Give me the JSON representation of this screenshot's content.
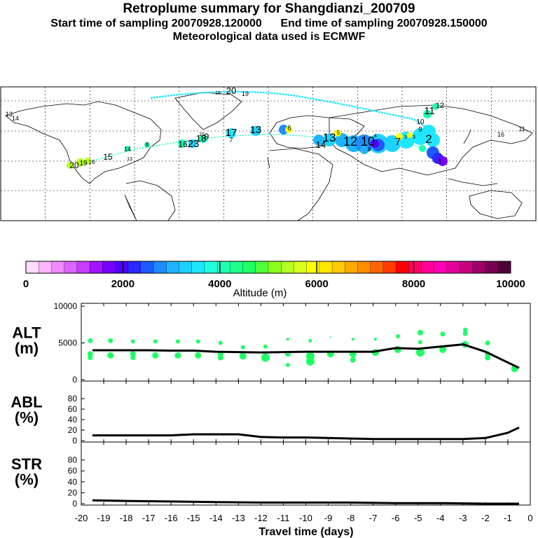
{
  "header": {
    "title": "Retroplume summary for Shangdianzi_200709",
    "sampling_line": "Start time of sampling 20070928.120000      End time of sampling 20070928.150000",
    "met_line": "Meteorological data used is ECMWF"
  },
  "colorbar": {
    "tick_labels": [
      "0",
      "2000",
      "4000",
      "6000",
      "8000",
      "10000"
    ],
    "label": "Altitude (m)",
    "colors": [
      "#ffdcff",
      "#ffb4ff",
      "#f08cff",
      "#dc64ff",
      "#c83cff",
      "#a014ff",
      "#7800ff",
      "#5000ff",
      "#2828ff",
      "#1e5aff",
      "#1e8cff",
      "#1eb4ff",
      "#1ed2ff",
      "#1ee6ff",
      "#1effdc",
      "#1effb4",
      "#1eff8c",
      "#1eff64",
      "#50ff3c",
      "#8cff1e",
      "#b4ff1e",
      "#dcff1e",
      "#ffff00",
      "#ffe600",
      "#ffc800",
      "#ffaa00",
      "#ff8c00",
      "#ff6400",
      "#ff3c00",
      "#ff0000",
      "#ff0064",
      "#ff0096",
      "#ff00b4",
      "#e6009b",
      "#c80082",
      "#a00069",
      "#780050",
      "#500037"
    ]
  },
  "map": {
    "labels": [
      {
        "t": "13",
        "c": "#1effb4"
      },
      {
        "t": "14",
        "c": "#1effb4"
      },
      {
        "t": "20",
        "c": "#1effb4"
      },
      {
        "t": "19",
        "c": "#1effb4"
      },
      {
        "t": "18",
        "c": "#1effb4"
      },
      {
        "t": "17",
        "c": "#1ed2ff"
      },
      {
        "t": "7",
        "c": "#1ed2ff"
      },
      {
        "t": "13",
        "c": "#1ed2ff"
      },
      {
        "t": "6",
        "c": "#ffff00"
      },
      {
        "t": "5",
        "c": "#ffff00"
      },
      {
        "t": "14",
        "c": "#1eb4ff"
      },
      {
        "t": "13",
        "c": "#1eb4ff"
      },
      {
        "t": "12",
        "c": "#1e8cff"
      },
      {
        "t": "10",
        "c": "#1e5aff"
      },
      {
        "t": "8",
        "c": "#1e8cff"
      },
      {
        "t": "4",
        "c": "#ffff00"
      },
      {
        "t": "7",
        "c": "#1ed2ff"
      },
      {
        "t": "3",
        "c": "#ffff00"
      },
      {
        "t": "3",
        "c": "#ffff00"
      },
      {
        "t": "2",
        "c": "#1e8cff"
      },
      {
        "t": "1",
        "c": "#5000ff"
      },
      {
        "t": "12",
        "c": "#1effb4"
      },
      {
        "t": "11",
        "c": "#1effb4"
      },
      {
        "t": "10",
        "c": "#1effb4"
      },
      {
        "t": "9",
        "c": "#1ed2ff"
      },
      {
        "t": "20",
        "c": "#b4ff1e"
      },
      {
        "t": "19",
        "c": "#b4ff1e"
      },
      {
        "t": "16",
        "c": "#b4ff1e"
      },
      {
        "t": "15",
        "c": "#1effb4"
      },
      {
        "t": "14",
        "c": "#1effb4"
      },
      {
        "t": "13",
        "c": "#1effb4"
      },
      {
        "t": "18",
        "c": "#1effb4"
      },
      {
        "t": "16",
        "c": "#1effb4"
      },
      {
        "t": "23",
        "c": "#1effb4"
      },
      {
        "t": "9",
        "c": "#1effb4"
      },
      {
        "t": "8",
        "c": "#1effb4"
      },
      {
        "t": "15",
        "c": "#1effb4"
      },
      {
        "t": "16",
        "c": "#1effb4"
      },
      {
        "t": "11",
        "c": "#1effb4"
      }
    ]
  },
  "chart_data": [
    {
      "type": "line",
      "name": "ALT",
      "ylabel": "ALT\n(m)",
      "ylim": [
        0,
        10000
      ],
      "yticks": [
        "0",
        "5000",
        "10000"
      ],
      "x": [
        -19.5,
        -19,
        -18,
        -17,
        -16,
        -15,
        -14,
        -13,
        -12,
        -11,
        -10,
        -9,
        -8,
        -7,
        -6,
        -5,
        -4,
        -3,
        -2,
        -0.5
      ],
      "values": [
        4000,
        4000,
        4000,
        4000,
        3950,
        3950,
        3800,
        3750,
        3700,
        3750,
        3800,
        3800,
        3800,
        3800,
        4300,
        4200,
        4500,
        4800,
        3800,
        1600
      ],
      "dots": [
        {
          "x": -19.6,
          "y": 5300,
          "r": 3.5
        },
        {
          "x": -19.6,
          "y": 3500,
          "r": 4
        },
        {
          "x": -19.6,
          "y": 3000,
          "r": 3.5
        },
        {
          "x": -18.7,
          "y": 5300,
          "r": 3.5
        },
        {
          "x": -18.7,
          "y": 3300,
          "r": 4.5
        },
        {
          "x": -17.7,
          "y": 5200,
          "r": 3
        },
        {
          "x": -17.7,
          "y": 3500,
          "r": 4
        },
        {
          "x": -17.7,
          "y": 3000,
          "r": 3.5
        },
        {
          "x": -16.7,
          "y": 5200,
          "r": 3
        },
        {
          "x": -16.7,
          "y": 3300,
          "r": 4.5
        },
        {
          "x": -15.7,
          "y": 5200,
          "r": 3
        },
        {
          "x": -15.7,
          "y": 3300,
          "r": 4.5
        },
        {
          "x": -14.8,
          "y": 5200,
          "r": 3
        },
        {
          "x": -14.8,
          "y": 3300,
          "r": 4.5
        },
        {
          "x": -13.8,
          "y": 5000,
          "r": 3
        },
        {
          "x": -13.8,
          "y": 3500,
          "r": 4
        },
        {
          "x": -13.8,
          "y": 3000,
          "r": 4
        },
        {
          "x": -12.8,
          "y": 4400,
          "r": 3
        },
        {
          "x": -12.8,
          "y": 3200,
          "r": 5
        },
        {
          "x": -11.8,
          "y": 4500,
          "r": 3
        },
        {
          "x": -11.8,
          "y": 3000,
          "r": 6
        },
        {
          "x": -10.8,
          "y": 5500,
          "r": 2
        },
        {
          "x": -10.8,
          "y": 3500,
          "r": 4
        },
        {
          "x": -10.8,
          "y": 2000,
          "r": 3
        },
        {
          "x": -9.8,
          "y": 5300,
          "r": 2.5
        },
        {
          "x": -9.8,
          "y": 3200,
          "r": 6
        },
        {
          "x": -9.8,
          "y": 2500,
          "r": 6
        },
        {
          "x": -8.9,
          "y": 5800,
          "r": 1
        },
        {
          "x": -8.9,
          "y": 3500,
          "r": 5
        },
        {
          "x": -7.9,
          "y": 5500,
          "r": 2
        },
        {
          "x": -7.9,
          "y": 3500,
          "r": 5
        },
        {
          "x": -7.9,
          "y": 2700,
          "r": 4
        },
        {
          "x": -6.9,
          "y": 5500,
          "r": 2
        },
        {
          "x": -6.9,
          "y": 3700,
          "r": 5
        },
        {
          "x": -5.9,
          "y": 5900,
          "r": 3
        },
        {
          "x": -5.9,
          "y": 4100,
          "r": 5
        },
        {
          "x": -4.9,
          "y": 6400,
          "r": 4
        },
        {
          "x": -4.9,
          "y": 5100,
          "r": 3
        },
        {
          "x": -4.9,
          "y": 3700,
          "r": 6
        },
        {
          "x": -3.9,
          "y": 6200,
          "r": 3.5
        },
        {
          "x": -3.9,
          "y": 4100,
          "r": 5
        },
        {
          "x": -2.9,
          "y": 6800,
          "r": 3
        },
        {
          "x": -2.9,
          "y": 6300,
          "r": 3.5
        },
        {
          "x": -2.9,
          "y": 4800,
          "r": 5
        },
        {
          "x": -1.9,
          "y": 5000,
          "r": 3.5
        },
        {
          "x": -1.9,
          "y": 3500,
          "r": 4
        },
        {
          "x": -1.9,
          "y": 3000,
          "r": 4
        },
        {
          "x": -0.7,
          "y": 1500,
          "r": 5
        }
      ]
    },
    {
      "type": "line",
      "name": "ABL",
      "ylabel": "ABL\n(%)",
      "ylim": [
        0,
        100
      ],
      "yticks": [
        "0",
        "20",
        "40",
        "60",
        "80"
      ],
      "x": [
        -19.5,
        -18,
        -17,
        -16,
        -15,
        -14,
        -13,
        -12,
        -11,
        -10,
        -9,
        -8,
        -7,
        -6,
        -5,
        -4,
        -3,
        -2,
        -1,
        -0.5
      ],
      "values": [
        10,
        10,
        10,
        10,
        12,
        12,
        12,
        7,
        6,
        6,
        5,
        4,
        3,
        3,
        3,
        3,
        3,
        5,
        15,
        25
      ]
    },
    {
      "type": "line",
      "name": "STR",
      "ylabel": "STR\n(%)",
      "ylim": [
        0,
        100
      ],
      "yticks": [
        "0",
        "20",
        "40",
        "60",
        "80"
      ],
      "x": [
        -19.5,
        -18,
        -16,
        -14,
        -12,
        -10,
        -8,
        -6,
        -4,
        -2,
        -0.5
      ],
      "values": [
        6,
        5,
        4,
        3,
        2,
        2,
        2,
        1,
        1,
        0,
        0
      ],
      "xlabel": "Travel time (days)",
      "xticks": [
        "-20",
        "-19",
        "-18",
        "-17",
        "-16",
        "-15",
        "-14",
        "-13",
        "-12",
        "-11",
        "-10",
        "-9",
        "-8",
        "-7",
        "-6",
        "-5",
        "-4",
        "-3",
        "-2",
        "-1",
        "0"
      ]
    }
  ]
}
